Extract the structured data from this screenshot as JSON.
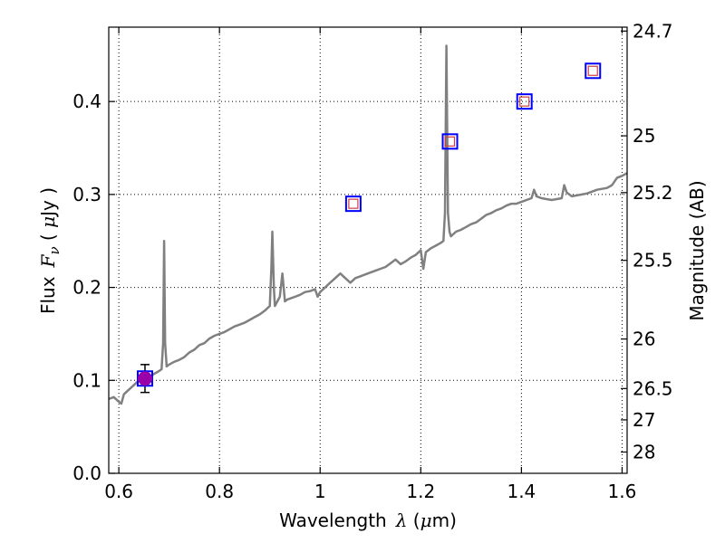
{
  "chart_data": {
    "type": "line",
    "title": "",
    "xlabel": {
      "prefix": "Wavelength",
      "symbol": "λ",
      "unit_open": " (",
      "unit_mu": "μ",
      "unit_rest": "m)"
    },
    "ylabel": {
      "prefix": "Flux",
      "symbol": "F",
      "subscript": "ν",
      "unit_open": " ( ",
      "unit_mu": "μ",
      "unit_rest": "Jy )"
    },
    "y2label": "Magnitude (AB)",
    "xlim": [
      0.58,
      1.61
    ],
    "ylim": [
      0.0,
      0.48
    ],
    "grid": true,
    "x_ticks": [
      {
        "value": 0.6,
        "label": "0.6"
      },
      {
        "value": 0.8,
        "label": "0.8"
      },
      {
        "value": 1.0,
        "label": "1"
      },
      {
        "value": 1.2,
        "label": "1.2"
      },
      {
        "value": 1.4,
        "label": "1.4"
      },
      {
        "value": 1.6,
        "label": "1.6"
      }
    ],
    "y_ticks": [
      {
        "value": 0.0,
        "label": "0.0"
      },
      {
        "value": 0.1,
        "label": "0.1"
      },
      {
        "value": 0.2,
        "label": "0.2"
      },
      {
        "value": 0.3,
        "label": "0.3"
      },
      {
        "value": 0.4,
        "label": "0.4"
      }
    ],
    "y2_ticks": [
      {
        "flux": 0.4758,
        "label": "24.7"
      },
      {
        "flux": 0.3631,
        "label": "25"
      },
      {
        "flux": 0.302,
        "label": "25.2"
      },
      {
        "flux": 0.2291,
        "label": "25.5"
      },
      {
        "flux": 0.1445,
        "label": "26"
      },
      {
        "flux": 0.0912,
        "label": "26.5"
      },
      {
        "flux": 0.0575,
        "label": "27"
      },
      {
        "flux": 0.0229,
        "label": "28"
      }
    ],
    "series": [
      {
        "name": "spectrum",
        "color": "#808080",
        "x": [
          0.58,
          0.59,
          0.6,
          0.605,
          0.61,
          0.62,
          0.63,
          0.64,
          0.65,
          0.66,
          0.67,
          0.68,
          0.685,
          0.688,
          0.69,
          0.692,
          0.695,
          0.7,
          0.71,
          0.72,
          0.73,
          0.74,
          0.75,
          0.76,
          0.77,
          0.78,
          0.79,
          0.8,
          0.81,
          0.82,
          0.83,
          0.84,
          0.85,
          0.86,
          0.87,
          0.88,
          0.89,
          0.9,
          0.903,
          0.905,
          0.908,
          0.91,
          0.92,
          0.925,
          0.93,
          0.935,
          0.94,
          0.95,
          0.96,
          0.97,
          0.98,
          0.99,
          0.995,
          1.0,
          1.01,
          1.02,
          1.03,
          1.04,
          1.05,
          1.06,
          1.07,
          1.08,
          1.09,
          1.1,
          1.11,
          1.12,
          1.13,
          1.14,
          1.15,
          1.16,
          1.17,
          1.18,
          1.19,
          1.2,
          1.205,
          1.21,
          1.22,
          1.23,
          1.24,
          1.245,
          1.248,
          1.251,
          1.254,
          1.257,
          1.26,
          1.27,
          1.28,
          1.29,
          1.3,
          1.31,
          1.32,
          1.33,
          1.34,
          1.35,
          1.36,
          1.37,
          1.38,
          1.39,
          1.4,
          1.41,
          1.42,
          1.425,
          1.43,
          1.44,
          1.45,
          1.46,
          1.47,
          1.48,
          1.485,
          1.49,
          1.5,
          1.51,
          1.52,
          1.53,
          1.54,
          1.55,
          1.56,
          1.57,
          1.58,
          1.59,
          1.6,
          1.61
        ],
        "y": [
          0.08,
          0.082,
          0.077,
          0.075,
          0.085,
          0.09,
          0.095,
          0.1,
          0.098,
          0.103,
          0.107,
          0.11,
          0.112,
          0.14,
          0.25,
          0.14,
          0.115,
          0.117,
          0.12,
          0.122,
          0.125,
          0.13,
          0.133,
          0.138,
          0.14,
          0.145,
          0.148,
          0.15,
          0.152,
          0.155,
          0.158,
          0.16,
          0.162,
          0.165,
          0.168,
          0.171,
          0.175,
          0.18,
          0.22,
          0.26,
          0.2,
          0.18,
          0.19,
          0.215,
          0.185,
          0.187,
          0.188,
          0.19,
          0.192,
          0.195,
          0.196,
          0.198,
          0.19,
          0.195,
          0.2,
          0.205,
          0.21,
          0.215,
          0.21,
          0.205,
          0.21,
          0.212,
          0.214,
          0.216,
          0.218,
          0.22,
          0.222,
          0.226,
          0.23,
          0.225,
          0.228,
          0.232,
          0.235,
          0.24,
          0.22,
          0.238,
          0.242,
          0.245,
          0.248,
          0.25,
          0.28,
          0.46,
          0.28,
          0.26,
          0.255,
          0.26,
          0.262,
          0.265,
          0.268,
          0.27,
          0.274,
          0.278,
          0.28,
          0.283,
          0.285,
          0.288,
          0.29,
          0.29,
          0.292,
          0.294,
          0.296,
          0.305,
          0.298,
          0.296,
          0.295,
          0.294,
          0.295,
          0.296,
          0.31,
          0.302,
          0.298,
          0.299,
          0.3,
          0.301,
          0.303,
          0.305,
          0.306,
          0.307,
          0.31,
          0.318,
          0.32,
          0.323
        ]
      },
      {
        "name": "photometry",
        "type": "scatter",
        "points": [
          {
            "x": 0.652,
            "y": 0.102,
            "y_err": 0.015
          },
          {
            "x": 1.066,
            "y": 0.29
          },
          {
            "x": 1.258,
            "y": 0.357
          },
          {
            "x": 1.406,
            "y": 0.4
          },
          {
            "x": 1.542,
            "y": 0.433
          }
        ],
        "outer_marker_color": "#0000ff",
        "inner_marker_color": "#d04040",
        "error_color": "#000000"
      },
      {
        "name": "highlight",
        "type": "scatter",
        "points": [
          {
            "x": 0.652,
            "y": 0.102
          }
        ],
        "color": "#9900aa"
      }
    ]
  }
}
